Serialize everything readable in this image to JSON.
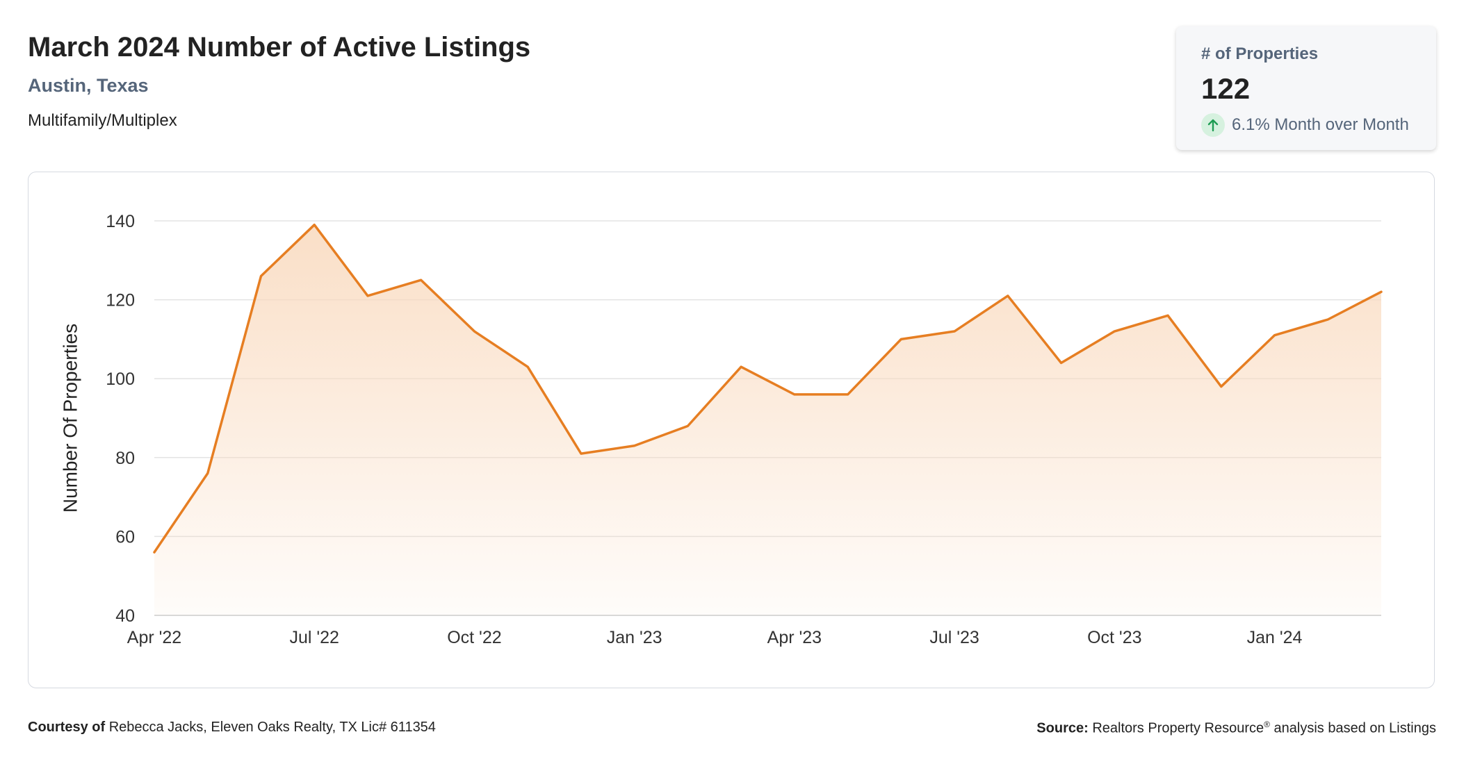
{
  "header": {
    "title": "March 2024 Number of Active Listings",
    "location": "Austin, Texas",
    "property_type": "Multifamily/Multiplex"
  },
  "kpi": {
    "label": "# of Properties",
    "value": "122",
    "change_text": "6.1% Month over Month",
    "change_icon": "arrow-up-icon",
    "change_color": "#1e9c53"
  },
  "footer": {
    "courtesy_label": "Courtesy of",
    "courtesy_text": "Rebecca Jacks, Eleven Oaks Realty, TX Lic# 611354",
    "source_label": "Source:",
    "source_text": "Realtors Property Resource",
    "source_mark": "®",
    "source_suffix": "analysis based on Listings"
  },
  "chart_data": {
    "type": "area",
    "ylabel": "Number Of Properties",
    "xlabel": "",
    "ylim": [
      40,
      140
    ],
    "yticks": [
      40,
      60,
      80,
      100,
      120,
      140
    ],
    "grid": true,
    "x": [
      "2022-04",
      "2022-05",
      "2022-06",
      "2022-07",
      "2022-08",
      "2022-09",
      "2022-10",
      "2022-11",
      "2022-12",
      "2023-01",
      "2023-02",
      "2023-03",
      "2023-04",
      "2023-05",
      "2023-06",
      "2023-07",
      "2023-08",
      "2023-09",
      "2023-10",
      "2023-11",
      "2023-12",
      "2024-01",
      "2024-02",
      "2024-03"
    ],
    "values": [
      56,
      76,
      126,
      139,
      121,
      125,
      112,
      103,
      81,
      83,
      88,
      103,
      96,
      96,
      110,
      112,
      121,
      104,
      112,
      116,
      98,
      111,
      115,
      122
    ],
    "xtick_labels": [
      {
        "x": "2022-04",
        "label": "Apr '22"
      },
      {
        "x": "2022-07",
        "label": "Jul '22"
      },
      {
        "x": "2022-10",
        "label": "Oct '22"
      },
      {
        "x": "2023-01",
        "label": "Jan '23"
      },
      {
        "x": "2023-04",
        "label": "Apr '23"
      },
      {
        "x": "2023-07",
        "label": "Jul '23"
      },
      {
        "x": "2023-10",
        "label": "Oct '23"
      },
      {
        "x": "2024-01",
        "label": "Jan '24"
      }
    ],
    "line_color": "#e67e22",
    "fill_color": "#f9d9bd"
  }
}
